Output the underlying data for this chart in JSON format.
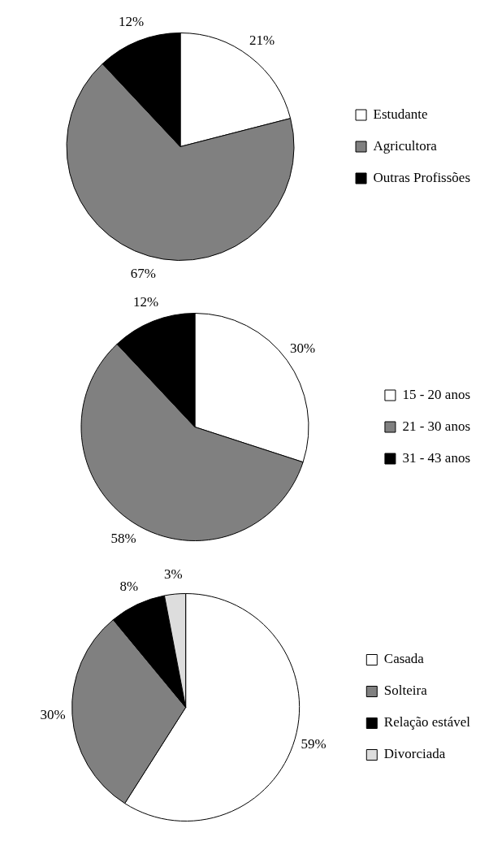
{
  "chart_data": [
    {
      "type": "pie",
      "categories": [
        "Estudante",
        "Agricultora",
        "Outras Profissões"
      ],
      "values": [
        21,
        67,
        12
      ],
      "value_labels": [
        "21%",
        "67%",
        "12%"
      ],
      "colors": [
        "#ffffff",
        "#808080",
        "#000000"
      ],
      "legend": "right"
    },
    {
      "type": "pie",
      "categories": [
        "15 - 20 anos",
        "21 - 30 anos",
        "31 - 43 anos"
      ],
      "values": [
        30,
        58,
        12
      ],
      "value_labels": [
        "30%",
        "58%",
        "12%"
      ],
      "colors": [
        "#ffffff",
        "#808080",
        "#000000"
      ],
      "legend": "right"
    },
    {
      "type": "pie",
      "categories": [
        "Casada",
        "Solteira",
        "Relação estável",
        "Divorciada"
      ],
      "values": [
        59,
        30,
        8,
        3
      ],
      "value_labels": [
        "59%",
        "30%",
        "8%",
        "3%"
      ],
      "colors": [
        "#ffffff",
        "#808080",
        "#000000",
        "#dddddd"
      ],
      "legend": "right"
    }
  ]
}
